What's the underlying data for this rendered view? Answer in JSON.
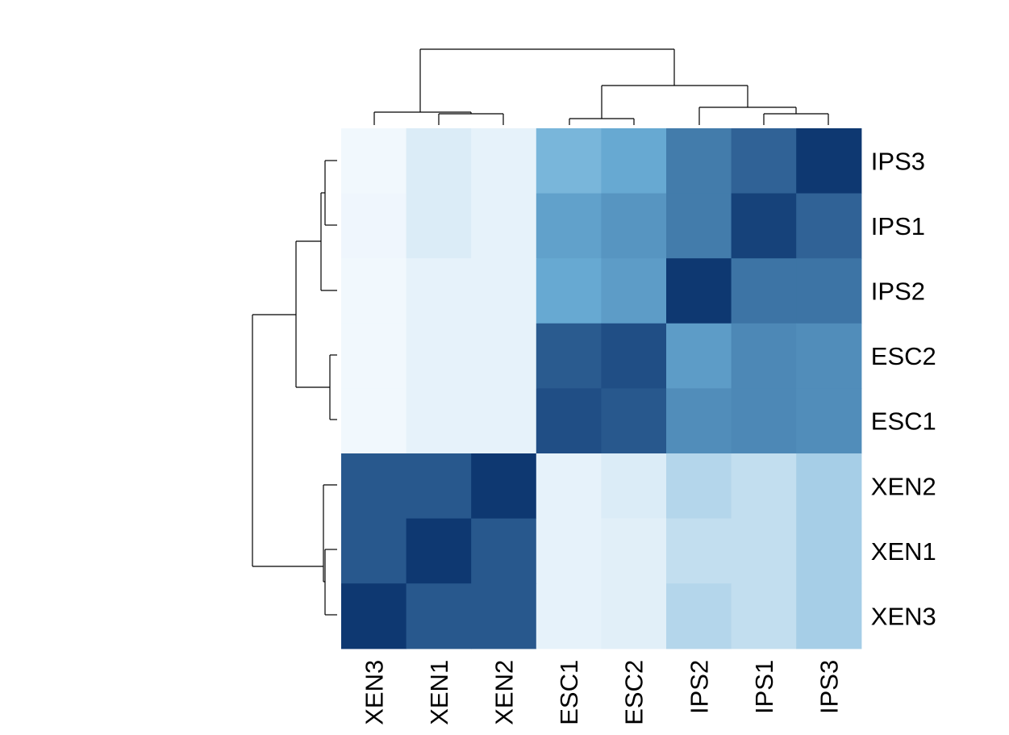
{
  "chart_data": {
    "type": "heatmap",
    "title": "",
    "xlabel": "",
    "ylabel": "",
    "columns": [
      "XEN3",
      "XEN1",
      "XEN2",
      "ESC1",
      "ESC2",
      "IPS2",
      "IPS1",
      "IPS3"
    ],
    "rows": [
      "IPS3",
      "IPS1",
      "IPS2",
      "ESC2",
      "ESC1",
      "XEN2",
      "XEN1",
      "XEN3"
    ],
    "color_scale": {
      "low": "#f7fbff",
      "mid": "#6baed6",
      "high": "#08306b",
      "palette": "Blues"
    },
    "values": [
      [
        0.02,
        0.1,
        0.06,
        0.45,
        0.52,
        0.7,
        0.8,
        0.97
      ],
      [
        0.03,
        0.1,
        0.06,
        0.55,
        0.6,
        0.7,
        0.93,
        0.8
      ],
      [
        0.02,
        0.06,
        0.06,
        0.52,
        0.57,
        0.97,
        0.73,
        0.73
      ],
      [
        0.02,
        0.06,
        0.06,
        0.83,
        0.88,
        0.57,
        0.65,
        0.63
      ],
      [
        0.02,
        0.06,
        0.06,
        0.88,
        0.84,
        0.63,
        0.65,
        0.63
      ],
      [
        0.84,
        0.84,
        0.97,
        0.06,
        0.1,
        0.24,
        0.19,
        0.29
      ],
      [
        0.84,
        0.97,
        0.84,
        0.06,
        0.08,
        0.19,
        0.19,
        0.29
      ],
      [
        0.97,
        0.84,
        0.84,
        0.06,
        0.08,
        0.24,
        0.19,
        0.29
      ]
    ],
    "legend": "none",
    "column_dendrogram": "top",
    "row_dendrogram": "left"
  }
}
